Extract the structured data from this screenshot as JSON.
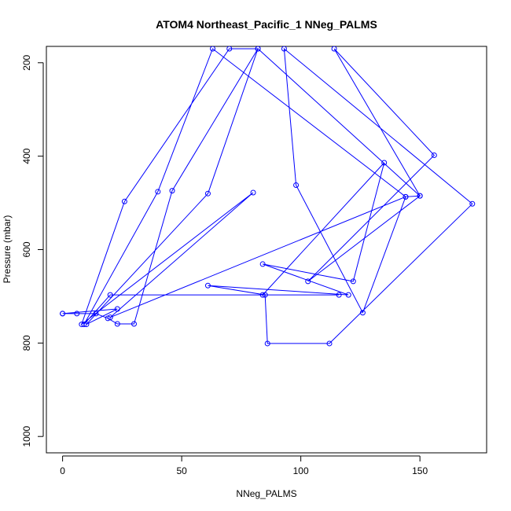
{
  "chart_data": {
    "type": "line",
    "title": "ATOM4 Northeast_Pacific_1 NNeg_PALMS",
    "xlabel": "NNeg_PALMS",
    "ylabel": "Pressure (mbar)",
    "xlim": [
      -6.8,
      178
    ],
    "ylim": [
      1035,
      165
    ],
    "y_reversed": true,
    "x_ticks": [
      0,
      50,
      100,
      150
    ],
    "y_ticks": [
      200,
      400,
      600,
      800,
      1000
    ],
    "grid": false,
    "colors": {
      "series": "#0000ff",
      "axis": "#000000"
    },
    "series": [
      {
        "markers": "open-circle",
        "points": [
          [
            0,
            737
          ],
          [
            6,
            737
          ],
          [
            14,
            737
          ],
          [
            19,
            747
          ],
          [
            23,
            759
          ],
          [
            30,
            759
          ],
          [
            46,
            474
          ],
          [
            82,
            170
          ],
          [
            70,
            170
          ],
          [
            26,
            497
          ],
          [
            8,
            760
          ],
          [
            80,
            478
          ],
          [
            20,
            745
          ],
          [
            144,
            487
          ],
          [
            63,
            170
          ],
          [
            40,
            476
          ],
          [
            9,
            760
          ],
          [
            20,
            697
          ],
          [
            116,
            697
          ],
          [
            84,
            697
          ],
          [
            135,
            414
          ],
          [
            122,
            668
          ],
          [
            84,
            631
          ],
          [
            120,
            697
          ],
          [
            61,
            677
          ],
          [
            85,
            697
          ],
          [
            86,
            801
          ],
          [
            112,
            801
          ],
          [
            172,
            502
          ],
          [
            93,
            170
          ],
          [
            98,
            462
          ],
          [
            126,
            735
          ],
          [
            144,
            487
          ],
          [
            150,
            485
          ],
          [
            103,
            668
          ],
          [
            156,
            398
          ],
          [
            114,
            170
          ],
          [
            150,
            485
          ],
          [
            82,
            170
          ],
          [
            61,
            480
          ],
          [
            10,
            760
          ],
          [
            23,
            727
          ],
          [
            0,
            737
          ]
        ]
      }
    ]
  }
}
